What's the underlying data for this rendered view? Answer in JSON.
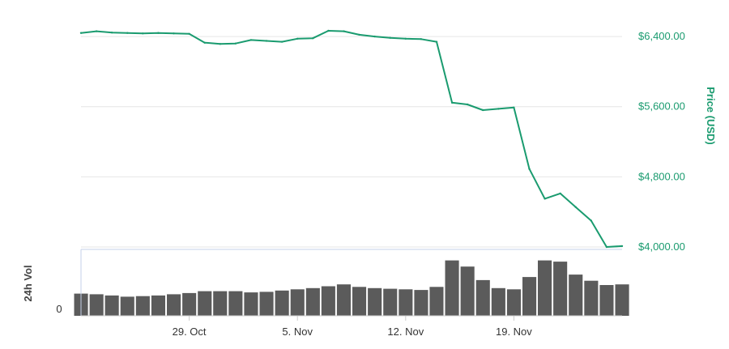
{
  "chart_data": [
    {
      "type": "line",
      "title": "",
      "series": [
        {
          "name": "Price (USD)",
          "x": [
            "2018-10-22",
            "2018-10-23",
            "2018-10-24",
            "2018-10-25",
            "2018-10-26",
            "2018-10-27",
            "2018-10-28",
            "2018-10-29",
            "2018-10-30",
            "2018-10-31",
            "2018-11-01",
            "2018-11-02",
            "2018-11-03",
            "2018-11-04",
            "2018-11-05",
            "2018-11-06",
            "2018-11-07",
            "2018-11-08",
            "2018-11-09",
            "2018-11-10",
            "2018-11-11",
            "2018-11-12",
            "2018-11-13",
            "2018-11-14",
            "2018-11-15",
            "2018-11-16",
            "2018-11-17",
            "2018-11-18",
            "2018-11-19",
            "2018-11-20",
            "2018-11-21",
            "2018-11-22",
            "2018-11-23",
            "2018-11-24",
            "2018-11-25",
            "2018-11-26"
          ],
          "values": [
            6440,
            6460,
            6445,
            6440,
            6435,
            6440,
            6435,
            6430,
            6330,
            6315,
            6320,
            6360,
            6350,
            6340,
            6375,
            6380,
            6465,
            6460,
            6420,
            6400,
            6385,
            6375,
            6370,
            6340,
            5645,
            5625,
            5560,
            5575,
            5590,
            4890,
            4550,
            4610,
            4455,
            4300,
            4000,
            4010
          ]
        }
      ],
      "ylabel": "Price (USD)",
      "yticks": [
        "$4,000.00",
        "$4,800.00",
        "$5,600.00",
        "$6,400.00"
      ],
      "ylim": [
        4000,
        6650
      ],
      "grid": true
    },
    {
      "type": "bar",
      "ylabel": "24h Vol",
      "yticks": [
        "0"
      ],
      "xticks": [
        "29. Oct",
        "5. Nov",
        "12. Nov",
        "19. Nov"
      ],
      "categories": [
        "2018-10-22",
        "2018-10-23",
        "2018-10-24",
        "2018-10-25",
        "2018-10-26",
        "2018-10-27",
        "2018-10-28",
        "2018-10-29",
        "2018-10-30",
        "2018-10-31",
        "2018-11-01",
        "2018-11-02",
        "2018-11-03",
        "2018-11-04",
        "2018-11-05",
        "2018-11-06",
        "2018-11-07",
        "2018-11-08",
        "2018-11-09",
        "2018-11-10",
        "2018-11-11",
        "2018-11-12",
        "2018-11-13",
        "2018-11-14",
        "2018-11-15",
        "2018-11-16",
        "2018-11-17",
        "2018-11-18",
        "2018-11-19",
        "2018-11-20",
        "2018-11-21",
        "2018-11-22",
        "2018-11-23",
        "2018-11-24",
        "2018-11-25",
        "2018-11-26"
      ],
      "values": [
        0.36,
        0.35,
        0.33,
        0.31,
        0.32,
        0.33,
        0.35,
        0.37,
        0.4,
        0.4,
        0.4,
        0.38,
        0.39,
        0.41,
        0.43,
        0.45,
        0.48,
        0.51,
        0.47,
        0.45,
        0.44,
        0.43,
        0.42,
        0.47,
        0.9,
        0.8,
        0.58,
        0.45,
        0.43,
        0.63,
        0.9,
        0.88,
        0.67,
        0.57,
        0.5,
        0.51
      ]
    }
  ],
  "colors": {
    "price_line": "#1a9b6f",
    "volume_bar": "#5b5b5b",
    "grid": "#e6e6e6",
    "axis": "#cccccc",
    "volume_border": "#c6d2ea"
  }
}
